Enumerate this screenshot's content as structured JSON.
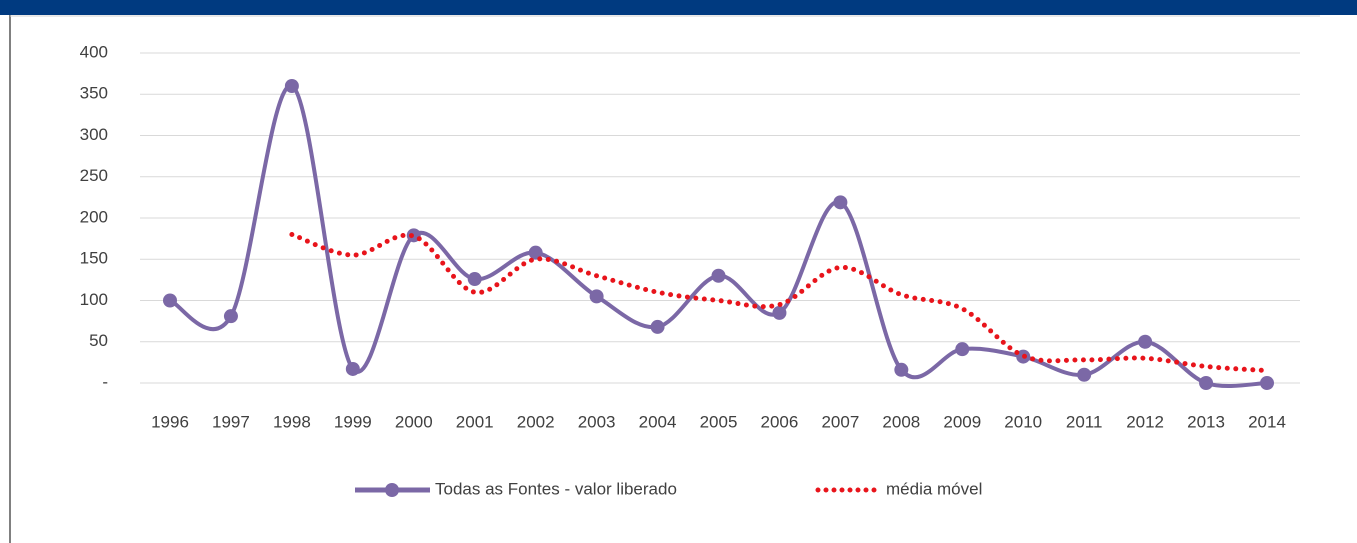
{
  "chart_data": {
    "type": "line",
    "categories": [
      "1996",
      "1997",
      "1998",
      "1999",
      "2000",
      "2001",
      "2002",
      "2003",
      "2004",
      "2005",
      "2006",
      "2007",
      "2008",
      "2009",
      "2010",
      "2011",
      "2012",
      "2013",
      "2014"
    ],
    "series": [
      {
        "name": "Todas as Fontes - valor liberado",
        "color": "#7b68a6",
        "style": "solid-marker",
        "values": [
          100,
          81,
          360,
          17,
          179,
          126,
          158,
          105,
          68,
          130,
          85,
          219,
          16,
          41,
          32,
          10,
          50,
          0,
          0
        ]
      },
      {
        "name": "média móvel",
        "color": "#e8141b",
        "style": "dotted",
        "values": [
          null,
          null,
          180,
          155,
          178,
          110,
          150,
          130,
          110,
          100,
          95,
          140,
          107,
          90,
          33,
          28,
          30,
          20,
          15
        ]
      }
    ],
    "ylim": [
      0,
      400
    ],
    "yticks": [
      {
        "value": 0,
        "label": "-"
      },
      50,
      100,
      150,
      200,
      250,
      300,
      350,
      400
    ],
    "grid": true,
    "legend": "bottom"
  }
}
